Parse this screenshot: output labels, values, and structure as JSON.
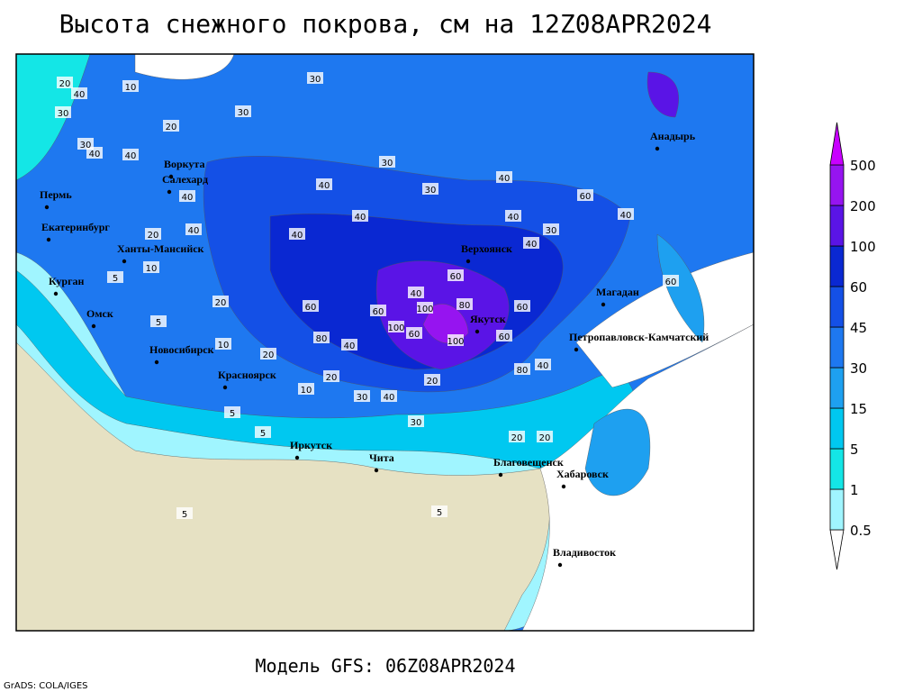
{
  "title": "Высота снежного покрова, см на 12Z08APR2024",
  "subtitle": "Модель GFS: 06Z08APR2024",
  "credit": "GrADS: COLA/IGES",
  "colorbar": {
    "levels": [
      0.5,
      1,
      5,
      15,
      30,
      45,
      60,
      100,
      200,
      500
    ],
    "colors": [
      "#ffffff",
      "#a0f5ff",
      "#14e6e6",
      "#00c8f0",
      "#1ea0f0",
      "#1e78f0",
      "#1450e6",
      "#0a28d2",
      "#5a14e6",
      "#9614f0",
      "#c800ff"
    ]
  },
  "cities": [
    "Пермь",
    "Екатеринбург",
    "Воркута",
    "Салехард",
    "Ханты-Мансийск",
    "Курган",
    "Омск",
    "Новосибирск",
    "Красноярск",
    "Иркутск",
    "Чита",
    "Благовещенск",
    "Хабаровск",
    "Владивосток",
    "Верхоянск",
    "Якутск",
    "Магадан",
    "Петропавловск-Камчатский",
    "Анадырь"
  ],
  "contour_labels": [
    20,
    40,
    10,
    30,
    30,
    20,
    30,
    40,
    30,
    40,
    30,
    40,
    40,
    40,
    40,
    20,
    40,
    40,
    30,
    40,
    60,
    40,
    40,
    30,
    10,
    5,
    5,
    20,
    60,
    60,
    40,
    60,
    80,
    100,
    100,
    80,
    100,
    60,
    80,
    60,
    60,
    40,
    40,
    20,
    10,
    20,
    30,
    5,
    5,
    10,
    30,
    40,
    20,
    20,
    5,
    5,
    60,
    20
  ]
}
